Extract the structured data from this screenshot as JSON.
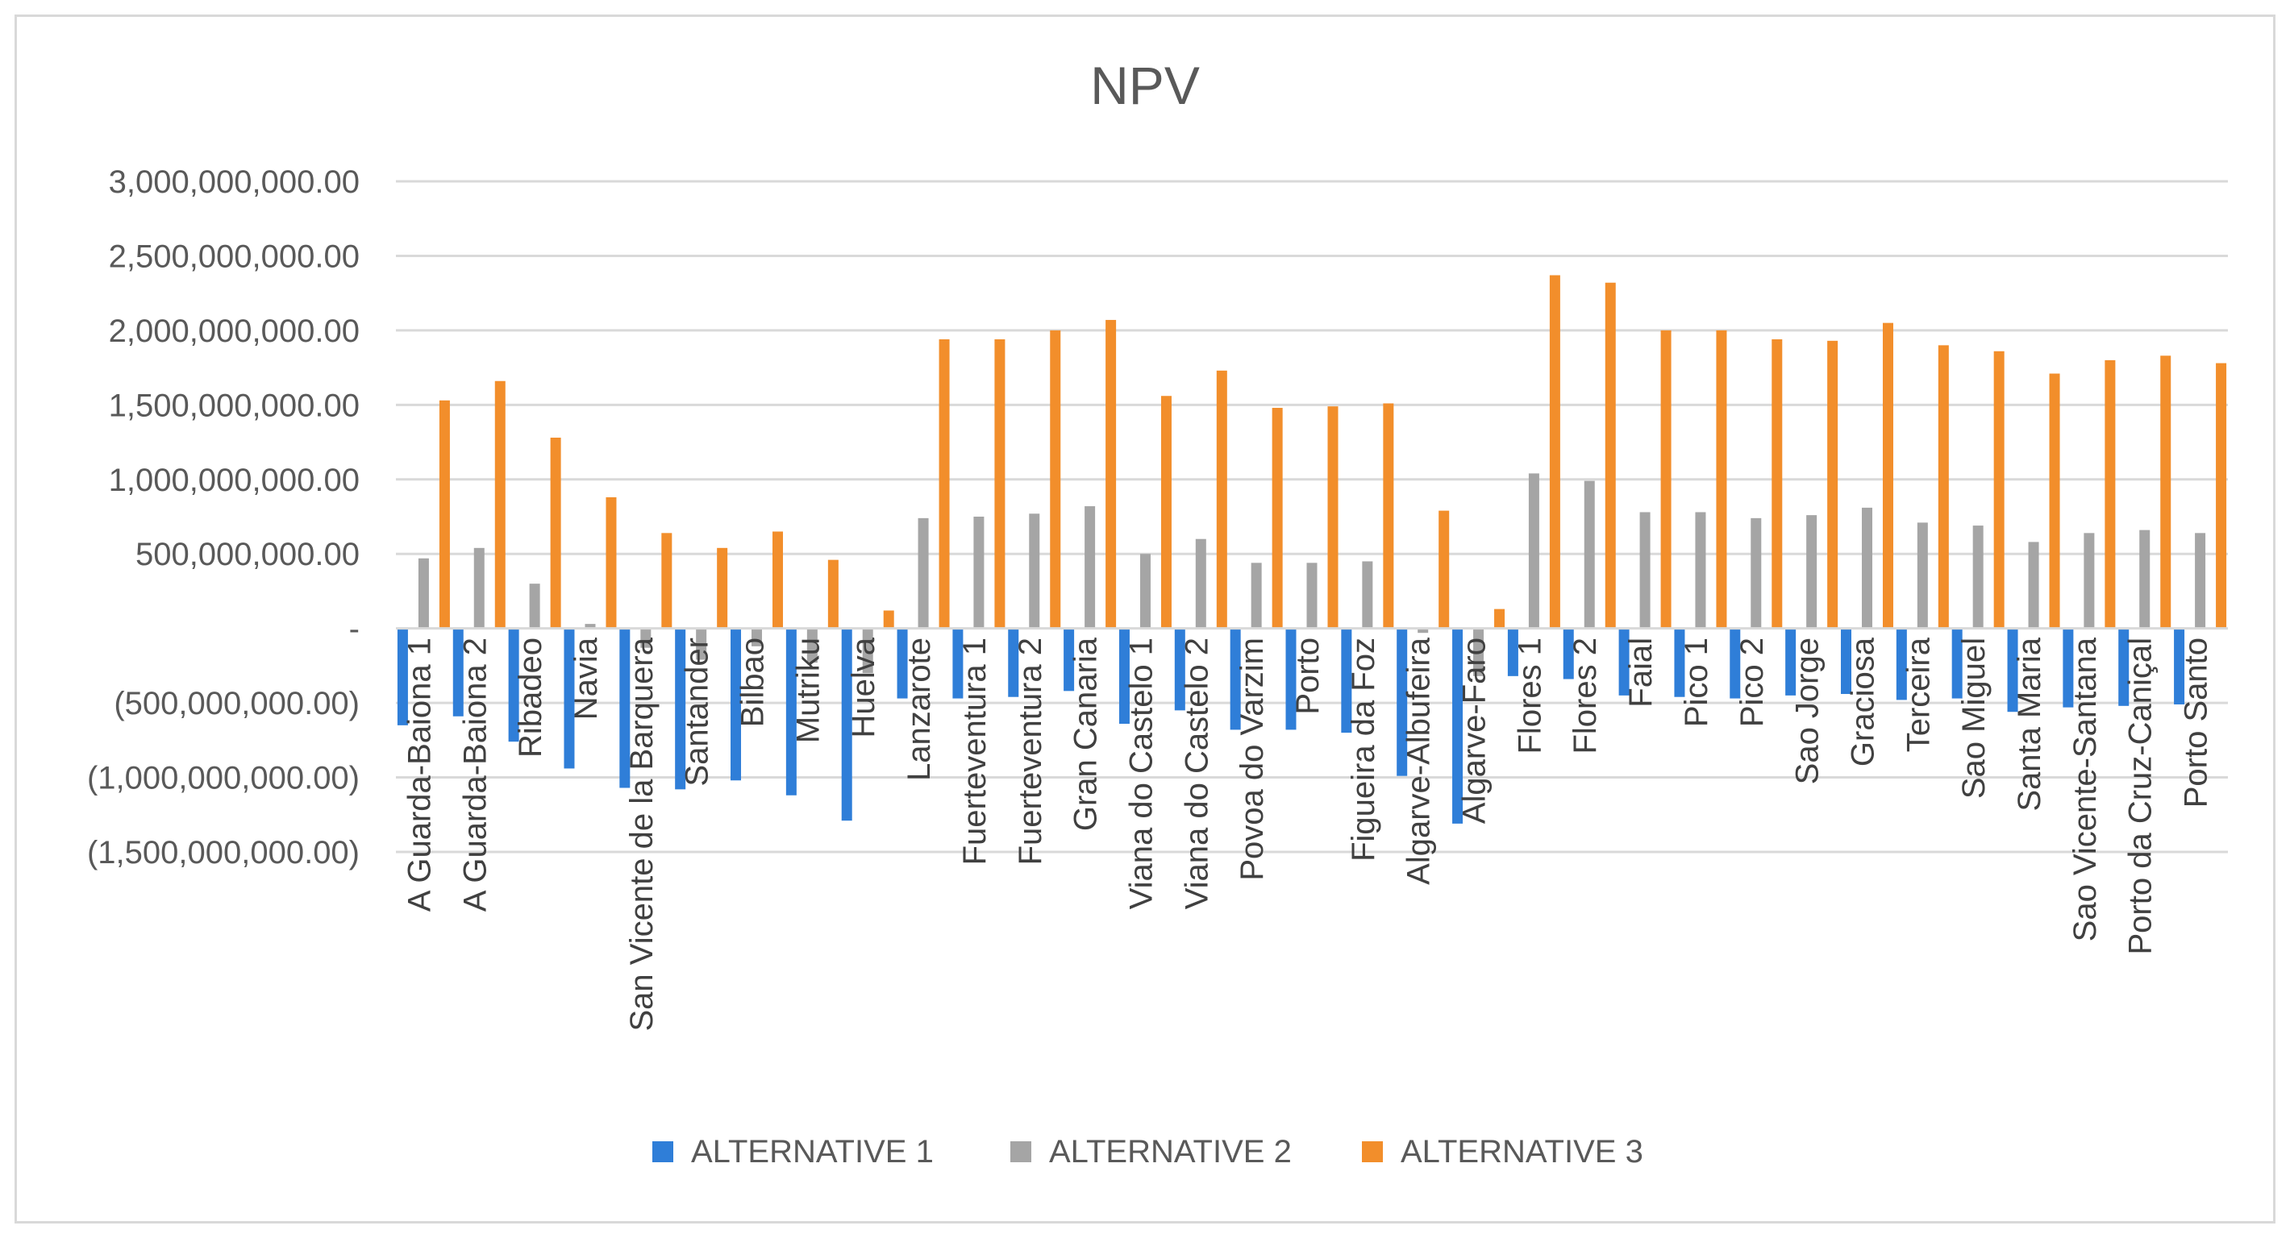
{
  "chart_data": {
    "type": "bar",
    "title": "NPV",
    "xlabel": "",
    "ylabel": "",
    "ylim": [
      -1500000000,
      3000000000
    ],
    "y_ticks": [
      {
        "value": 3000000000,
        "label": "3,000,000,000.00"
      },
      {
        "value": 2500000000,
        "label": "2,500,000,000.00"
      },
      {
        "value": 2000000000,
        "label": "2,000,000,000.00"
      },
      {
        "value": 1500000000,
        "label": "1,500,000,000.00"
      },
      {
        "value": 1000000000,
        "label": "1,000,000,000.00"
      },
      {
        "value": 500000000,
        "label": "500,000,000.00"
      },
      {
        "value": 0,
        "label": "-"
      },
      {
        "value": -500000000,
        "label": "(500,000,000.00)"
      },
      {
        "value": -1000000000,
        "label": "(1,000,000,000.00)"
      },
      {
        "value": -1500000000,
        "label": "(1,500,000,000.00)"
      }
    ],
    "grid": true,
    "legend_position": "bottom",
    "categories": [
      "A Guarda-Baiona 1",
      "A Guarda-Baiona 2",
      "Ribadeo",
      "Navia",
      "San Vicente de la Barquera",
      "Santander",
      "Bilbao",
      "Mutriku",
      "Huelva",
      "Lanzarote",
      "Fuerteventura 1",
      "Fuerteventura 2",
      "Gran Canaria",
      "Viana do Castelo 1",
      "Viana do Castelo 2",
      "Povoa do Varzim",
      "Porto",
      "Figueira da Foz",
      "Algarve-Albufeira",
      "Algarve-Faro",
      "Flores 1",
      "Flores 2",
      "Faial",
      "Pico 1",
      "Pico 2",
      "Sao Jorge",
      "Graciosa",
      "Terceira",
      "Sao Miguel",
      "Santa Maria",
      "Sao Vicente-Santana",
      "Porto da Cruz-Caniçal",
      "Porto Santo"
    ],
    "series": [
      {
        "name": "ALTERNATIVE 1",
        "color": "#2f7ed8",
        "values": [
          -650000000,
          -590000000,
          -760000000,
          -940000000,
          -1070000000,
          -1080000000,
          -1020000000,
          -1120000000,
          -1290000000,
          -470000000,
          -470000000,
          -460000000,
          -420000000,
          -640000000,
          -550000000,
          -680000000,
          -680000000,
          -700000000,
          -990000000,
          -1310000000,
          -320000000,
          -340000000,
          -450000000,
          -460000000,
          -470000000,
          -450000000,
          -440000000,
          -480000000,
          -470000000,
          -560000000,
          -530000000,
          -520000000,
          -510000000
        ]
      },
      {
        "name": "ALTERNATIVE 2",
        "color": "#a5a5a5",
        "values": [
          470000000,
          540000000,
          300000000,
          30000000,
          -130000000,
          -210000000,
          -120000000,
          -230000000,
          -300000000,
          740000000,
          750000000,
          770000000,
          820000000,
          500000000,
          600000000,
          440000000,
          440000000,
          450000000,
          -30000000,
          -320000000,
          1040000000,
          990000000,
          780000000,
          780000000,
          740000000,
          760000000,
          810000000,
          710000000,
          690000000,
          580000000,
          640000000,
          660000000,
          640000000
        ]
      },
      {
        "name": "ALTERNATIVE 3",
        "color": "#f28e2b",
        "values": [
          1530000000,
          1660000000,
          1280000000,
          880000000,
          640000000,
          540000000,
          650000000,
          460000000,
          120000000,
          1940000000,
          1940000000,
          2000000000,
          2070000000,
          1560000000,
          1730000000,
          1480000000,
          1490000000,
          1510000000,
          790000000,
          130000000,
          2370000000,
          2320000000,
          2000000000,
          2000000000,
          1940000000,
          1930000000,
          2050000000,
          1900000000,
          1860000000,
          1710000000,
          1800000000,
          1830000000,
          1780000000
        ]
      }
    ]
  }
}
